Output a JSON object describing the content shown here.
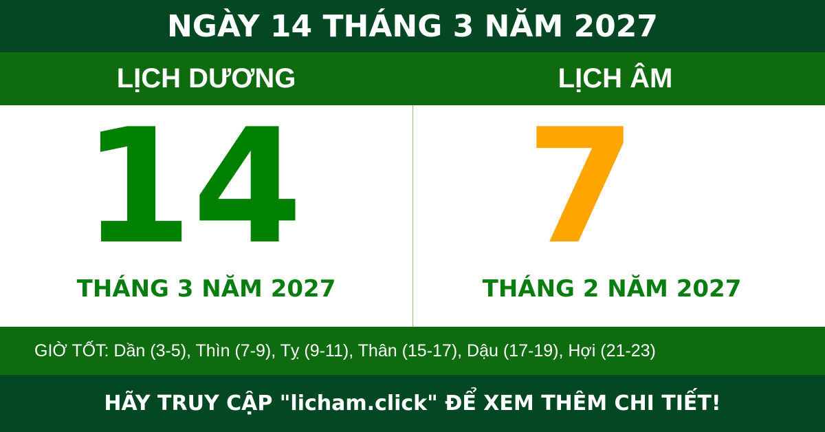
{
  "header": {
    "title": "NGÀY 14 THÁNG 3 NĂM 2027"
  },
  "solar": {
    "label": "LỊCH DƯƠNG",
    "day": "14",
    "month_year": "THÁNG 3 NĂM 2027"
  },
  "lunar": {
    "label": "LỊCH ÂM",
    "day": "7",
    "month_year": "THÁNG 2 NĂM 2027"
  },
  "good_hours": "GIỜ TỐT: Dần (3-5), Thìn (7-9), Tỵ (9-11), Thân (15-17), Dậu (17-19), Hợi (21-23)",
  "footer": "HÃY TRUY CẬP \"licham.click\" ĐỂ XEM THÊM CHI TIẾT!",
  "colors": {
    "dark_green": "#034823",
    "green": "#0f6b10",
    "solar_number": "#008000",
    "lunar_number": "#ffa500"
  }
}
